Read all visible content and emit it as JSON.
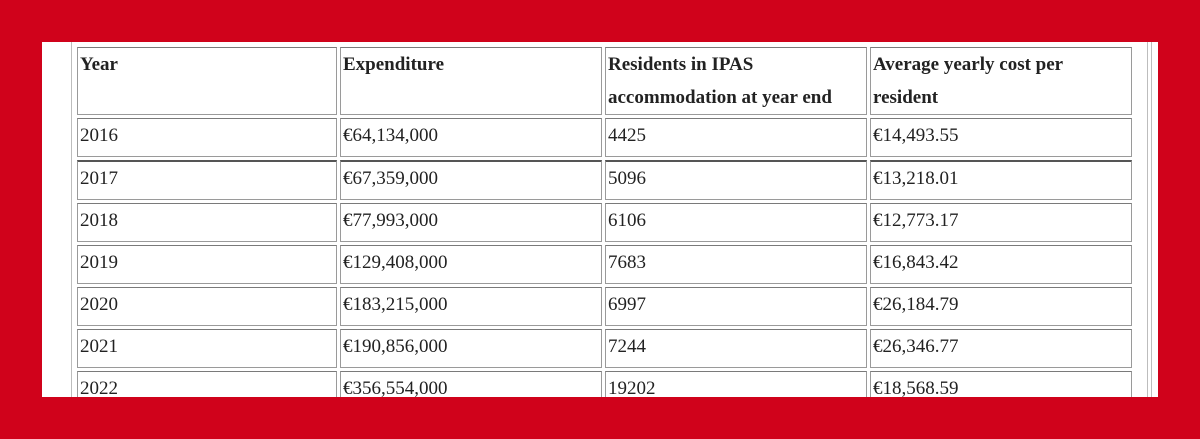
{
  "table": {
    "headers": [
      "Year",
      "Expenditure",
      "Residents in IPAS accommodation at year end",
      "Average yearly cost per resident"
    ],
    "rows": [
      [
        "2016",
        "€64,134,000",
        "4425",
        "€14,493.55"
      ],
      [
        "2017",
        "€67,359,000",
        "5096",
        "€13,218.01"
      ],
      [
        "2018",
        "€77,993,000",
        "6106",
        "€12,773.17"
      ],
      [
        "2019",
        "€129,408,000",
        "7683",
        "€16,843.42"
      ],
      [
        "2020",
        "€183,215,000",
        "6997",
        "€26,184.79"
      ],
      [
        "2021",
        "€190,856,000",
        "7244",
        "€26,346.77"
      ],
      [
        "2022",
        "€356,554,000",
        "19202",
        "€18,568.59"
      ]
    ]
  },
  "colors": {
    "background": "#d0021b",
    "panel": "#ffffff",
    "border": "#9a9a9a",
    "text": "#222222"
  }
}
